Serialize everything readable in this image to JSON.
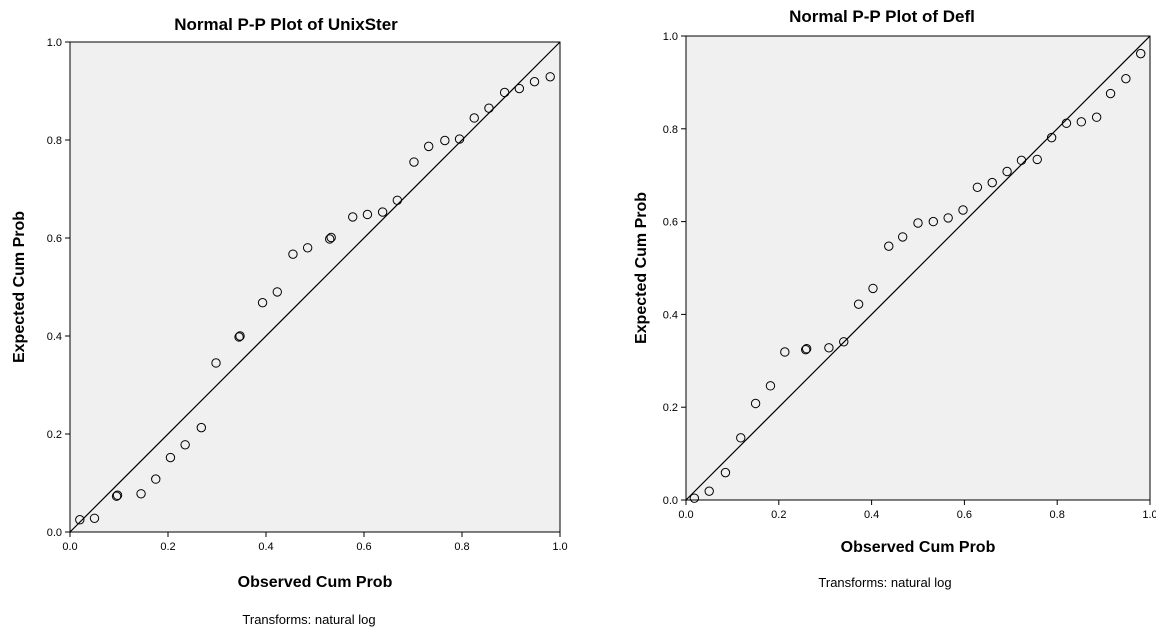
{
  "chart_data": [
    {
      "type": "scatter",
      "title": "Normal P-P Plot of UnixSter",
      "xlabel": "Observed Cum Prob",
      "ylabel": "Expected Cum Prob",
      "xlim": [
        0,
        1
      ],
      "ylim": [
        0,
        1
      ],
      "x_ticks": [
        "0.0",
        "0.2",
        "0.4",
        "0.6",
        "0.8",
        "1.0"
      ],
      "y_ticks": [
        "0.0",
        "0.2",
        "0.4",
        "0.6",
        "0.8",
        "1.0"
      ],
      "reference_line": "y = x",
      "footnote": "Transforms: natural log",
      "points": [
        [
          0.02,
          0.025
        ],
        [
          0.05,
          0.028
        ],
        [
          0.095,
          0.073
        ],
        [
          0.097,
          0.075
        ],
        [
          0.145,
          0.078
        ],
        [
          0.175,
          0.108
        ],
        [
          0.205,
          0.152
        ],
        [
          0.235,
          0.178
        ],
        [
          0.268,
          0.213
        ],
        [
          0.298,
          0.345
        ],
        [
          0.345,
          0.398
        ],
        [
          0.347,
          0.4
        ],
        [
          0.393,
          0.468
        ],
        [
          0.423,
          0.49
        ],
        [
          0.455,
          0.567
        ],
        [
          0.485,
          0.58
        ],
        [
          0.53,
          0.598
        ],
        [
          0.533,
          0.601
        ],
        [
          0.577,
          0.643
        ],
        [
          0.607,
          0.648
        ],
        [
          0.638,
          0.653
        ],
        [
          0.668,
          0.677
        ],
        [
          0.702,
          0.755
        ],
        [
          0.732,
          0.787
        ],
        [
          0.765,
          0.799
        ],
        [
          0.795,
          0.802
        ],
        [
          0.825,
          0.845
        ],
        [
          0.855,
          0.865
        ],
        [
          0.887,
          0.897
        ],
        [
          0.917,
          0.905
        ],
        [
          0.948,
          0.919
        ],
        [
          0.98,
          0.929
        ]
      ]
    },
    {
      "type": "scatter",
      "title": "Normal P-P Plot of Defl",
      "xlabel": "Observed Cum Prob",
      "ylabel": "Expected Cum Prob",
      "xlim": [
        0,
        1
      ],
      "ylim": [
        0,
        1
      ],
      "x_ticks": [
        "0.0",
        "0.2",
        "0.4",
        "0.6",
        "0.8",
        "1.0"
      ],
      "y_ticks": [
        "0.0",
        "0.2",
        "0.4",
        "0.6",
        "0.8",
        "1.0"
      ],
      "reference_line": "y = x",
      "footnote": "Transforms: natural log",
      "points": [
        [
          0.018,
          0.004
        ],
        [
          0.05,
          0.019
        ],
        [
          0.085,
          0.059
        ],
        [
          0.118,
          0.134
        ],
        [
          0.15,
          0.208
        ],
        [
          0.182,
          0.246
        ],
        [
          0.213,
          0.319
        ],
        [
          0.258,
          0.324
        ],
        [
          0.26,
          0.326
        ],
        [
          0.308,
          0.328
        ],
        [
          0.34,
          0.341
        ],
        [
          0.372,
          0.422
        ],
        [
          0.403,
          0.456
        ],
        [
          0.437,
          0.547
        ],
        [
          0.467,
          0.567
        ],
        [
          0.5,
          0.597
        ],
        [
          0.533,
          0.6
        ],
        [
          0.565,
          0.608
        ],
        [
          0.597,
          0.625
        ],
        [
          0.628,
          0.674
        ],
        [
          0.66,
          0.684
        ],
        [
          0.692,
          0.708
        ],
        [
          0.723,
          0.732
        ],
        [
          0.757,
          0.734
        ],
        [
          0.788,
          0.781
        ],
        [
          0.82,
          0.812
        ],
        [
          0.852,
          0.815
        ],
        [
          0.885,
          0.825
        ],
        [
          0.915,
          0.876
        ],
        [
          0.948,
          0.908
        ],
        [
          0.98,
          0.962
        ]
      ]
    }
  ]
}
